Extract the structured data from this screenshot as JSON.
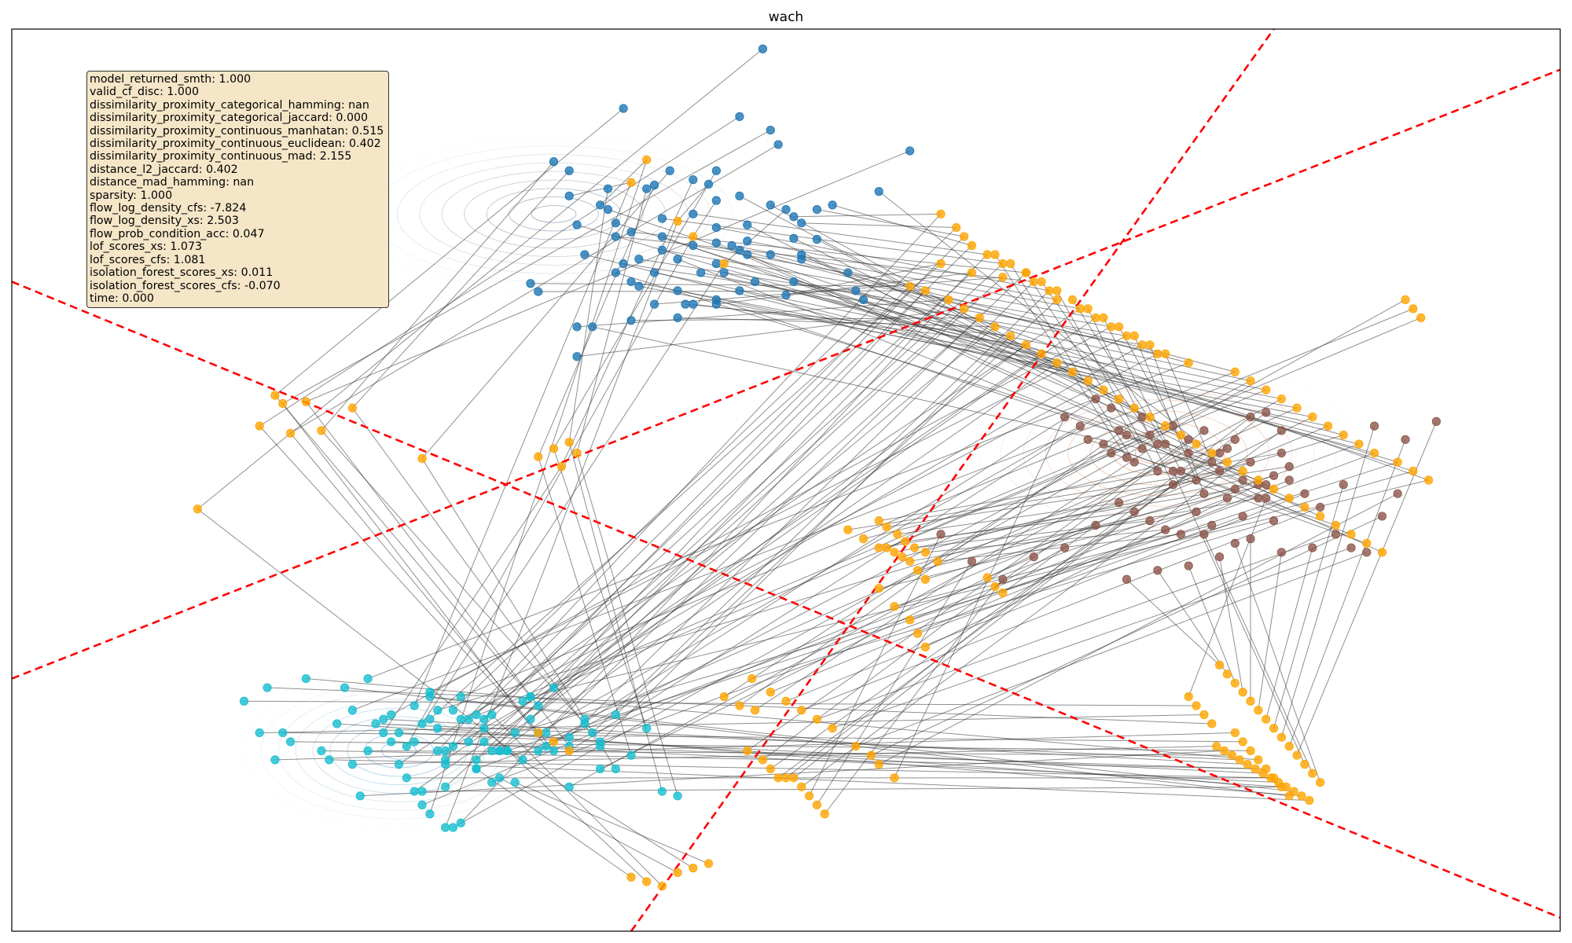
{
  "chart_data": {
    "type": "scatter",
    "title": "wach",
    "xlabel": "",
    "ylabel": "",
    "axes_visible": false,
    "grid": false,
    "metrics_box": {
      "placement": "top-left",
      "lines": [
        "model_returned_smth: 1.000",
        "valid_cf_disc: 1.000",
        "dissimilarity_proximity_categorical_hamming: nan",
        "dissimilarity_proximity_categorical_jaccard: 0.000",
        "dissimilarity_proximity_continuous_manhatan: 0.515",
        "dissimilarity_proximity_continuous_euclidean: 0.402",
        "dissimilarity_proximity_continuous_mad: 2.155",
        "distance_l2_jaccard: 0.402",
        "distance_mad_hamming: nan",
        "sparsity: 1.000",
        "flow_log_density_cfs: -7.824",
        "flow_log_density_xs: 2.503",
        "flow_prob_condition_acc: 0.047",
        "lof_scores_xs: 1.073",
        "lof_scores_cfs: 1.081",
        "isolation_forest_scores_xs: 0.011",
        "isolation_forest_scores_cfs: -0.070",
        "time: 0.000"
      ]
    },
    "colors": {
      "class_0": "#1f77b4",
      "class_1": "#8c564b",
      "class_2": "#17becf",
      "counterfactual": "#ffa500",
      "link": "#333333",
      "decision_boundary": "#ff0000"
    },
    "decision_boundaries": [
      {
        "from": [
          0.0,
          0.72
        ],
        "to": [
          1.0,
          0.045
        ]
      },
      {
        "from": [
          0.0,
          0.28
        ],
        "to": [
          1.0,
          0.985
        ]
      },
      {
        "from": [
          0.4,
          1.0
        ],
        "to": [
          0.815,
          0.0
        ]
      }
    ],
    "density_contours": [
      {
        "class": "class_0",
        "center": [
          0.35,
          0.205
        ],
        "spread": [
          0.26,
          0.2
        ]
      },
      {
        "class": "class_1",
        "center": [
          0.74,
          0.47
        ],
        "spread": [
          0.26,
          0.25
        ]
      },
      {
        "class": "class_2",
        "center": [
          0.25,
          0.8
        ],
        "spread": [
          0.2,
          0.2
        ]
      }
    ],
    "series": [
      {
        "name": "class_0",
        "x": [
          0.485,
          0.395,
          0.47,
          0.49,
          0.495,
          0.58,
          0.35,
          0.36,
          0.425,
          0.415,
          0.455,
          0.385,
          0.41,
          0.44,
          0.36,
          0.38,
          0.45,
          0.455,
          0.5,
          0.505,
          0.51,
          0.52,
          0.53,
          0.44,
          0.42,
          0.4,
          0.39,
          0.455,
          0.475,
          0.465,
          0.44,
          0.42,
          0.405,
          0.395,
          0.47,
          0.49,
          0.51,
          0.455,
          0.445,
          0.415,
          0.4,
          0.405,
          0.43,
          0.48,
          0.47,
          0.46,
          0.505,
          0.545,
          0.54,
          0.5,
          0.455,
          0.415,
          0.335,
          0.34,
          0.365,
          0.365,
          0.4,
          0.43,
          0.435,
          0.44,
          0.385,
          0.39,
          0.365,
          0.37,
          0.42,
          0.47,
          0.49,
          0.505,
          0.51,
          0.52,
          0.55,
          0.56,
          0.39,
          0.375,
          0.455,
          0.475,
          0.475,
          0.43,
          0.455
        ],
        "y": [
          0.022,
          0.088,
          0.097,
          0.112,
          0.128,
          0.135,
          0.147,
          0.157,
          0.157,
          0.173,
          0.157,
          0.177,
          0.177,
          0.167,
          0.185,
          0.195,
          0.172,
          0.19,
          0.2,
          0.208,
          0.215,
          0.2,
          0.195,
          0.205,
          0.21,
          0.225,
          0.23,
          0.22,
          0.235,
          0.24,
          0.24,
          0.245,
          0.255,
          0.26,
          0.245,
          0.25,
          0.255,
          0.26,
          0.27,
          0.27,
          0.28,
          0.285,
          0.29,
          0.28,
          0.29,
          0.27,
          0.28,
          0.29,
          0.27,
          0.295,
          0.305,
          0.305,
          0.282,
          0.291,
          0.33,
          0.363,
          0.323,
          0.32,
          0.305,
          0.305,
          0.2,
          0.215,
          0.217,
          0.25,
          0.23,
          0.185,
          0.195,
          0.232,
          0.25,
          0.233,
          0.3,
          0.18,
          0.27,
          0.33,
          0.3,
          0.217,
          0.25,
          0.255,
          0.237
        ]
      },
      {
        "name": "class_1",
        "x": [
          0.695,
          0.705,
          0.71,
          0.715,
          0.72,
          0.725,
          0.73,
          0.735,
          0.74,
          0.745,
          0.75,
          0.755,
          0.76,
          0.765,
          0.77,
          0.775,
          0.78,
          0.785,
          0.79,
          0.795,
          0.8,
          0.805,
          0.81,
          0.815,
          0.82,
          0.825,
          0.715,
          0.725,
          0.735,
          0.745,
          0.755,
          0.765,
          0.775,
          0.785,
          0.795,
          0.805,
          0.815,
          0.825,
          0.835,
          0.845,
          0.855,
          0.865,
          0.875,
          0.885,
          0.895,
          0.68,
          0.69,
          0.7,
          0.71,
          0.72,
          0.73,
          0.74,
          0.75,
          0.76,
          0.77,
          0.78,
          0.79,
          0.8,
          0.81,
          0.82,
          0.6,
          0.62,
          0.64,
          0.66,
          0.68,
          0.7,
          0.72,
          0.74,
          0.76,
          0.78,
          0.8,
          0.82,
          0.84,
          0.86,
          0.88,
          0.9,
          0.92,
          0.75,
          0.77,
          0.79,
          0.81
        ],
        "y": [
          0.455,
          0.46,
          0.47,
          0.445,
          0.475,
          0.48,
          0.465,
          0.45,
          0.49,
          0.46,
          0.505,
          0.49,
          0.47,
          0.5,
          0.515,
          0.48,
          0.49,
          0.465,
          0.51,
          0.5,
          0.48,
          0.52,
          0.505,
          0.495,
          0.47,
          0.485,
          0.525,
          0.535,
          0.545,
          0.555,
          0.56,
          0.535,
          0.55,
          0.52,
          0.54,
          0.505,
          0.545,
          0.5,
          0.515,
          0.53,
          0.56,
          0.575,
          0.58,
          0.54,
          0.515,
          0.43,
          0.44,
          0.41,
          0.42,
          0.45,
          0.43,
          0.46,
          0.44,
          0.455,
          0.445,
          0.47,
          0.455,
          0.43,
          0.425,
          0.445,
          0.56,
          0.59,
          0.61,
          0.585,
          0.575,
          0.55,
          0.61,
          0.6,
          0.595,
          0.585,
          0.565,
          0.58,
          0.575,
          0.505,
          0.44,
          0.455,
          0.435,
          0.49,
          0.56,
          0.57,
          0.52
        ],
        "note": ""
      },
      {
        "name": "class_2",
        "x": [
          0.15,
          0.16,
          0.165,
          0.17,
          0.175,
          0.18,
          0.19,
          0.2,
          0.205,
          0.21,
          0.215,
          0.22,
          0.225,
          0.23,
          0.235,
          0.24,
          0.245,
          0.25,
          0.255,
          0.26,
          0.265,
          0.27,
          0.275,
          0.28,
          0.285,
          0.29,
          0.295,
          0.3,
          0.305,
          0.31,
          0.315,
          0.32,
          0.325,
          0.33,
          0.335,
          0.34,
          0.345,
          0.35,
          0.36,
          0.37,
          0.38,
          0.39,
          0.4,
          0.41,
          0.42,
          0.43,
          0.24,
          0.26,
          0.27,
          0.28,
          0.255,
          0.265,
          0.275,
          0.285,
          0.295,
          0.305,
          0.315,
          0.33,
          0.345,
          0.36,
          0.375,
          0.39,
          0.25,
          0.26,
          0.245,
          0.27,
          0.28,
          0.29,
          0.23,
          0.22,
          0.34,
          0.35,
          0.36,
          0.37,
          0.38,
          0.265,
          0.275,
          0.3,
          0.31,
          0.32,
          0.325,
          0.335,
          0.27,
          0.285,
          0.28,
          0.3,
          0.31,
          0.29,
          0.305,
          0.335,
          0.34,
          0.38,
          0.3,
          0.28,
          0.315
        ],
        "y": [
          0.745,
          0.78,
          0.73,
          0.81,
          0.78,
          0.79,
          0.72,
          0.8,
          0.81,
          0.77,
          0.73,
          0.815,
          0.85,
          0.8,
          0.77,
          0.765,
          0.79,
          0.78,
          0.83,
          0.79,
          0.845,
          0.74,
          0.775,
          0.815,
          0.885,
          0.74,
          0.765,
          0.82,
          0.775,
          0.76,
          0.83,
          0.8,
          0.835,
          0.81,
          0.74,
          0.78,
          0.795,
          0.8,
          0.795,
          0.77,
          0.795,
          0.82,
          0.805,
          0.775,
          0.845,
          0.85,
          0.78,
          0.75,
          0.87,
          0.885,
          0.795,
          0.77,
          0.8,
          0.755,
          0.79,
          0.765,
          0.8,
          0.745,
          0.78,
          0.785,
          0.78,
          0.76,
          0.815,
          0.845,
          0.76,
          0.735,
          0.8,
          0.765,
          0.72,
          0.755,
          0.8,
          0.73,
          0.84,
          0.765,
          0.82,
          0.86,
          0.755,
          0.82,
          0.835,
          0.8,
          0.78,
          0.74,
          0.765,
          0.795,
          0.84,
          0.76,
          0.8,
          0.88,
          0.79,
          0.765,
          0.75,
          0.79,
          0.81,
          0.81,
          0.8
        ],
        "note": ""
      },
      {
        "name": "counterfactual",
        "x": [
          0.12,
          0.17,
          0.16,
          0.175,
          0.18,
          0.19,
          0.2,
          0.22,
          0.265,
          0.34,
          0.35,
          0.36,
          0.365,
          0.355,
          0.4,
          0.41,
          0.43,
          0.44,
          0.46,
          0.6,
          0.61,
          0.615,
          0.62,
          0.63,
          0.64,
          0.655,
          0.66,
          0.67,
          0.675,
          0.69,
          0.7,
          0.71,
          0.72,
          0.73,
          0.74,
          0.76,
          0.79,
          0.8,
          0.81,
          0.82,
          0.83,
          0.84,
          0.85,
          0.86,
          0.87,
          0.88,
          0.895,
          0.905,
          0.915,
          0.6,
          0.62,
          0.64,
          0.58,
          0.59,
          0.605,
          0.615,
          0.625,
          0.635,
          0.645,
          0.655,
          0.665,
          0.675,
          0.685,
          0.695,
          0.705,
          0.715,
          0.725,
          0.735,
          0.745,
          0.755,
          0.765,
          0.775,
          0.785,
          0.795,
          0.805,
          0.815,
          0.825,
          0.835,
          0.845,
          0.855,
          0.865,
          0.875,
          0.885,
          0.635,
          0.645,
          0.655,
          0.665,
          0.675,
          0.685,
          0.695,
          0.705,
          0.715,
          0.725,
          0.735,
          0.745,
          0.54,
          0.55,
          0.56,
          0.57,
          0.575,
          0.58,
          0.585,
          0.59,
          0.56,
          0.565,
          0.572,
          0.577,
          0.583,
          0.59,
          0.598,
          0.56,
          0.57,
          0.58,
          0.585,
          0.59,
          0.478,
          0.49,
          0.5,
          0.51,
          0.52,
          0.53,
          0.545,
          0.555,
          0.56,
          0.57,
          0.34,
          0.35,
          0.36,
          0.46,
          0.47,
          0.48,
          0.565,
          0.475,
          0.485,
          0.49,
          0.495,
          0.5,
          0.505,
          0.51,
          0.515,
          0.52,
          0.525,
          0.63,
          0.635,
          0.64,
          0.78,
          0.785,
          0.79,
          0.795,
          0.8,
          0.805,
          0.81,
          0.815,
          0.82,
          0.825,
          0.83,
          0.835,
          0.84,
          0.845,
          0.76,
          0.765,
          0.77,
          0.775,
          0.79,
          0.795,
          0.8,
          0.805,
          0.81,
          0.815,
          0.82,
          0.825,
          0.778,
          0.783,
          0.788,
          0.793,
          0.798,
          0.803,
          0.808,
          0.813,
          0.818,
          0.823,
          0.828,
          0.833,
          0.838,
          0.9,
          0.905,
          0.91,
          0.4,
          0.41,
          0.42,
          0.43,
          0.44,
          0.45
        ],
        "y": [
          0.532,
          0.406,
          0.44,
          0.415,
          0.448,
          0.413,
          0.445,
          0.42,
          0.476,
          0.474,
          0.465,
          0.458,
          0.47,
          0.485,
          0.17,
          0.145,
          0.213,
          0.23,
          0.26,
          0.205,
          0.22,
          0.23,
          0.24,
          0.25,
          0.26,
          0.27,
          0.28,
          0.29,
          0.3,
          0.31,
          0.32,
          0.33,
          0.34,
          0.35,
          0.36,
          0.37,
          0.38,
          0.39,
          0.4,
          0.41,
          0.42,
          0.43,
          0.44,
          0.45,
          0.46,
          0.47,
          0.48,
          0.49,
          0.5,
          0.26,
          0.27,
          0.275,
          0.285,
          0.29,
          0.3,
          0.31,
          0.32,
          0.33,
          0.34,
          0.35,
          0.36,
          0.37,
          0.38,
          0.39,
          0.4,
          0.41,
          0.42,
          0.43,
          0.44,
          0.45,
          0.46,
          0.47,
          0.48,
          0.49,
          0.5,
          0.51,
          0.52,
          0.53,
          0.54,
          0.55,
          0.56,
          0.57,
          0.58,
          0.25,
          0.26,
          0.27,
          0.28,
          0.29,
          0.3,
          0.31,
          0.32,
          0.33,
          0.34,
          0.35,
          0.36,
          0.555,
          0.565,
          0.575,
          0.58,
          0.585,
          0.59,
          0.6,
          0.61,
          0.545,
          0.552,
          0.56,
          0.568,
          0.575,
          0.58,
          0.59,
          0.62,
          0.64,
          0.655,
          0.67,
          0.685,
          0.72,
          0.735,
          0.745,
          0.755,
          0.765,
          0.775,
          0.795,
          0.805,
          0.815,
          0.83,
          0.78,
          0.79,
          0.8,
          0.74,
          0.75,
          0.755,
          0.575,
          0.8,
          0.81,
          0.82,
          0.83,
          0.83,
          0.83,
          0.84,
          0.85,
          0.86,
          0.87,
          0.608,
          0.618,
          0.625,
          0.705,
          0.715,
          0.725,
          0.735,
          0.745,
          0.755,
          0.765,
          0.775,
          0.785,
          0.795,
          0.805,
          0.815,
          0.825,
          0.835,
          0.74,
          0.75,
          0.76,
          0.77,
          0.78,
          0.79,
          0.8,
          0.81,
          0.82,
          0.83,
          0.84,
          0.85,
          0.795,
          0.8,
          0.805,
          0.81,
          0.815,
          0.82,
          0.825,
          0.83,
          0.835,
          0.84,
          0.845,
          0.85,
          0.855,
          0.3,
          0.31,
          0.32,
          0.94,
          0.945,
          0.95,
          0.935,
          0.93,
          0.925
        ]
      }
    ],
    "links": "each counterfactual is joined to its source point by a thin dark line"
  }
}
